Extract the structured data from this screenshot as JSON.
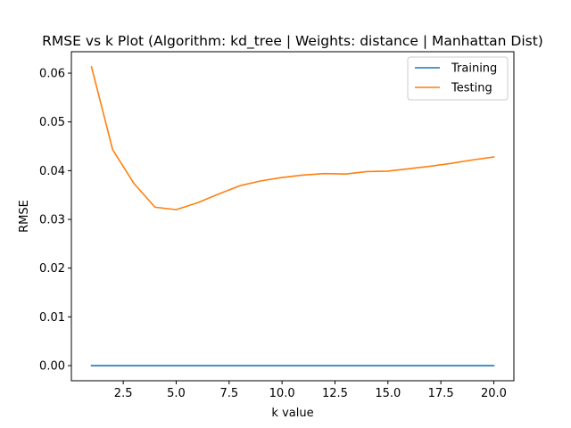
{
  "chart_data": {
    "type": "line",
    "title": "RMSE vs k Plot (Algorithm: kd_tree | Weights: distance | Manhattan Dist)",
    "xlabel": "k value",
    "ylabel": "RMSE",
    "xlim": [
      0.05,
      20.95
    ],
    "ylim": [
      -0.0031,
      0.0644
    ],
    "xticks": [
      2.5,
      5.0,
      7.5,
      10.0,
      12.5,
      15.0,
      17.5,
      20.0
    ],
    "xtick_labels": [
      "2.5",
      "5.0",
      "7.5",
      "10.0",
      "12.5",
      "15.0",
      "17.5",
      "20.0"
    ],
    "yticks": [
      0.0,
      0.01,
      0.02,
      0.03,
      0.04,
      0.05,
      0.06
    ],
    "ytick_labels": [
      "0.00",
      "0.01",
      "0.02",
      "0.03",
      "0.04",
      "0.05",
      "0.06"
    ],
    "grid": false,
    "legend_position": "top-right",
    "x": [
      1,
      2,
      3,
      4,
      5,
      6,
      7,
      8,
      9,
      10,
      11,
      12,
      13,
      14,
      15,
      16,
      17,
      18,
      19,
      20
    ],
    "series": [
      {
        "name": "Training",
        "color": "#1f77b4",
        "values": [
          0,
          0,
          0,
          0,
          0,
          0,
          0,
          0,
          0,
          0,
          0,
          0,
          0,
          0,
          0,
          0,
          0,
          0,
          0,
          0
        ]
      },
      {
        "name": "Testing",
        "color": "#ff7f0e",
        "values": [
          0.0613,
          0.0443,
          0.0374,
          0.0325,
          0.032,
          0.0334,
          0.0352,
          0.0369,
          0.0379,
          0.0386,
          0.0391,
          0.0394,
          0.0393,
          0.0398,
          0.0399,
          0.0404,
          0.0409,
          0.0415,
          0.0422,
          0.0428
        ]
      }
    ]
  }
}
